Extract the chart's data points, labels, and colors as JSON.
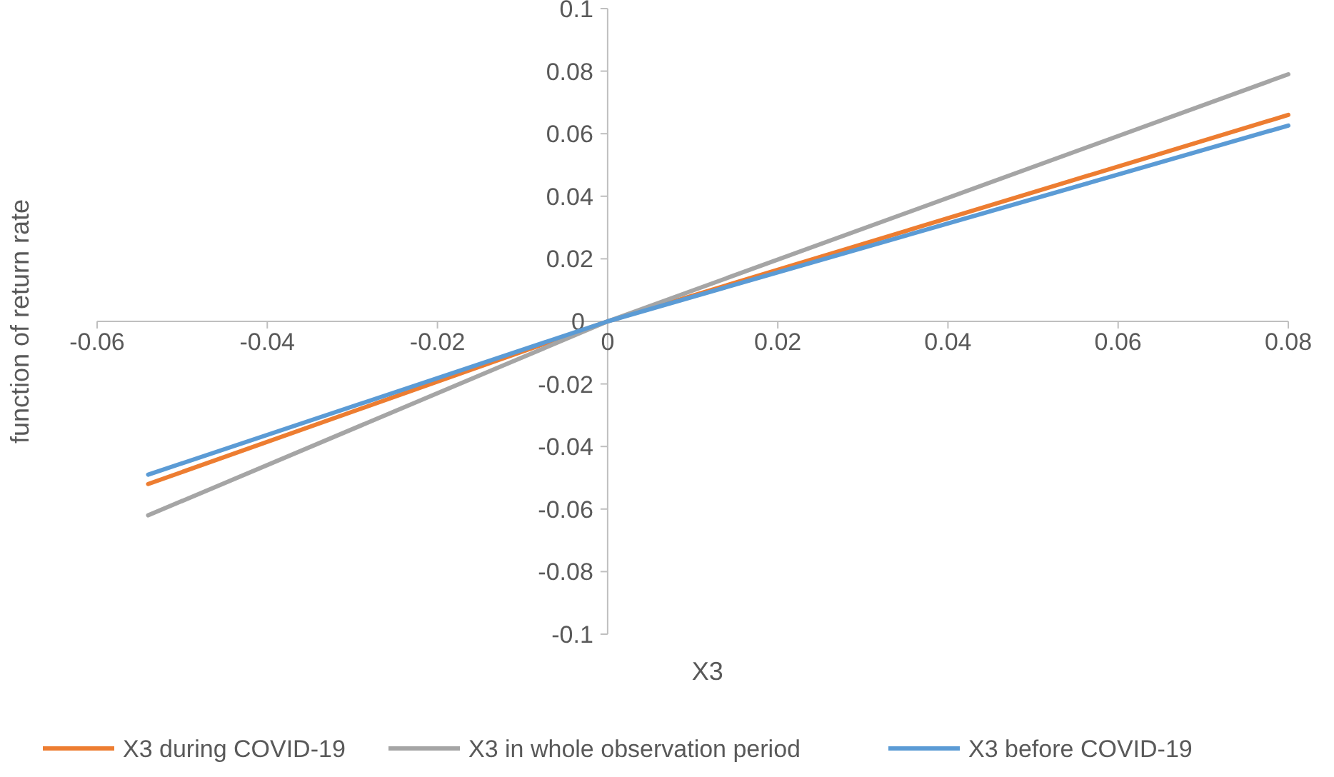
{
  "chart_data": {
    "type": "line",
    "xlabel": "X3",
    "ylabel": "function of return rate",
    "x": [
      -0.054,
      0,
      0.08
    ],
    "series": [
      {
        "name": "X3 during COVID-19",
        "color": "#ed7d31",
        "values": [
          -0.052,
          0,
          0.066
        ]
      },
      {
        "name": "X3 in whole observation period",
        "color": "#a5a5a5",
        "values": [
          -0.062,
          0,
          0.079
        ]
      },
      {
        "name": "X3 before COVID-19",
        "color": "#5b9bd5",
        "values": [
          -0.049,
          0,
          0.0626
        ]
      }
    ],
    "xlim": [
      -0.06,
      0.08
    ],
    "xticks": [
      -0.06,
      -0.04,
      -0.02,
      0,
      0.02,
      0.04,
      0.06,
      0.08
    ],
    "ylim": [
      -0.1,
      0.1
    ],
    "yticks": [
      -0.1,
      -0.08,
      -0.06,
      -0.04,
      -0.02,
      0,
      0.02,
      0.04,
      0.06,
      0.08,
      0.1
    ],
    "grid": false,
    "legend": "bottom",
    "marker": "none",
    "line_style": "solid"
  }
}
